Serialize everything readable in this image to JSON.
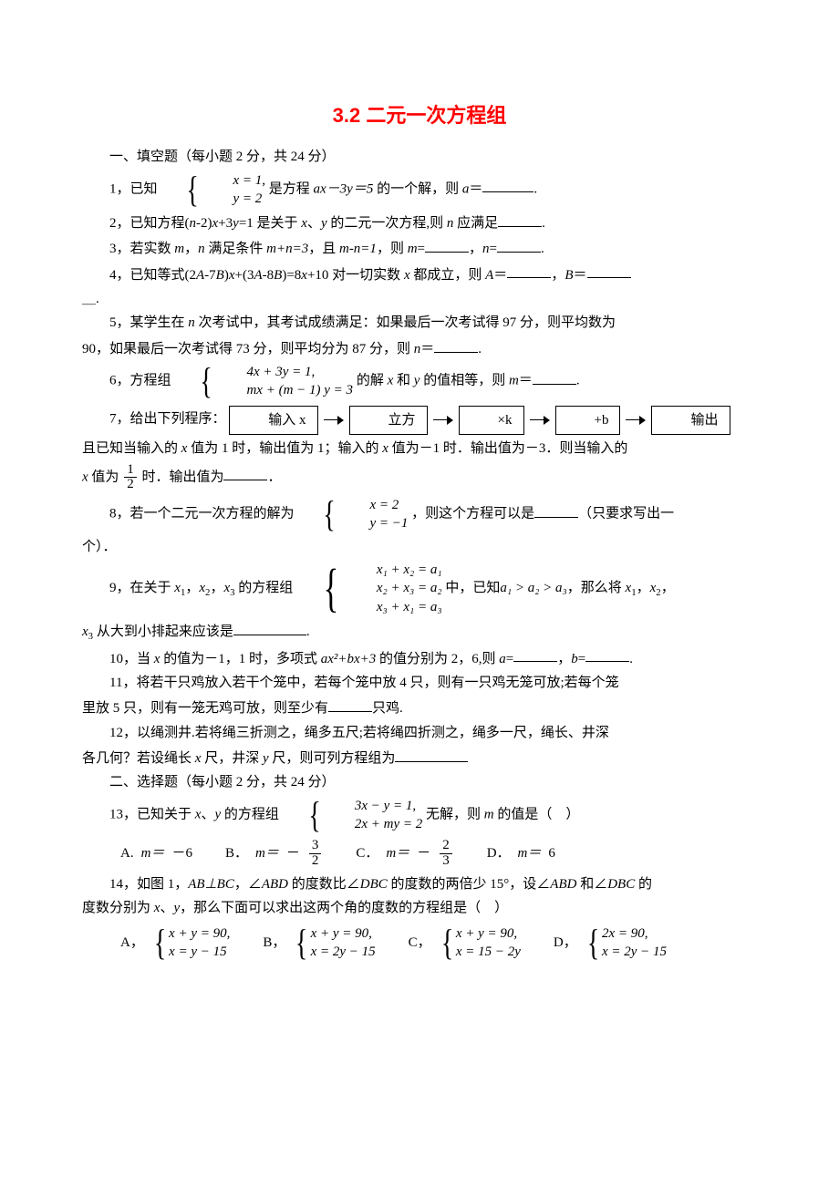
{
  "title": {
    "text": "3.2 二元一次方程组",
    "color": "#ff0000",
    "fontsize": 22
  },
  "section1": "一、填空题（每小题 2 分，共 24 分）",
  "q1": {
    "lead": "1，已知",
    "sys": [
      "x = 1,",
      "y = 2"
    ],
    "tail1": "是方程 ",
    "expr": "ax－3y＝5",
    "tail2": " 的一个解，则 ",
    "var": "a",
    "eq": "＝",
    "period": "."
  },
  "q2": {
    "text_a": "2，已知方程(",
    "n1": "n",
    "text_b": "-2)",
    "x": "x",
    "text_c": "+3",
    "y": "y",
    "text_d": "=1 是关于 ",
    "xv": "x",
    "text_e": "、",
    "yv": "y",
    "text_f": " 的二元一次方程,则 ",
    "nv": "n",
    "text_g": " 应满足",
    "period": "."
  },
  "q3": {
    "t1": "3，若实数 ",
    "m": "m",
    "t2": "，",
    "n": "n",
    "t3": " 满足条件 ",
    "e1": "m+n=3",
    "t4": "，且 ",
    "e2": "m-n=1",
    "t5": "，则 ",
    "mv": "m",
    "eq": "=",
    "t6": "，",
    "nv": "n",
    "eq2": "=",
    "period": "."
  },
  "q4": {
    "t1": "4，已知等式(2",
    "A": "A",
    "t2": "-7",
    "B": "B",
    "t3": ")",
    "x": "x",
    "t4": "+(3",
    "A2": "A",
    "t5": "-8",
    "B2": "B",
    "t6": ")=8",
    "x2": "x",
    "t7": "+10 对一切实数 ",
    "x3": "x",
    "t8": " 都成立，则 ",
    "Av": "A",
    "eq": "＝",
    "t9": "，",
    "Bv": "B",
    "eq2": "＝",
    "tail": "."
  },
  "q4_cont": "＿.",
  "q5": {
    "t1": "5，某学生在 ",
    "n": "n",
    "t2": " 次考试中，其考试成绩满足：如果最后一次考试得 97 分，则平均数为"
  },
  "q5b": {
    "t1": "90，如果最后一次考试得 73 分，则平均分为 87 分，则 ",
    "n": "n",
    "eq": "＝",
    "period": "."
  },
  "q6": {
    "lead": "6，方程组",
    "sys": [
      "4x + 3y = 1,",
      "mx + (m − 1) y = 3"
    ],
    "t1": "的解 ",
    "x": "x",
    "t2": " 和 ",
    "y": "y",
    "t3": " 的值相等，则 ",
    "m": "m",
    "eq": "＝",
    "period": "."
  },
  "q7": {
    "lead": "7，给出下列程序：",
    "boxes": [
      "输入 x",
      "立方",
      "×k",
      "+b",
      "输出"
    ]
  },
  "q7b": {
    "t1": "且已知当输入的 ",
    "x": "x",
    "t2": " 值为 1 时，输出值为 1；输入的 ",
    "x2": "x",
    "t3": " 值为－1 时．输出值为－3．则当输入的"
  },
  "q7c": {
    "x": "x",
    "t1": " 值为",
    "frac": {
      "num": "1",
      "den": "2"
    },
    "t2": "时．输出值为",
    "period": "．"
  },
  "q8": {
    "lead": "8，若一个二元一次方程的解为",
    "sys": [
      "x = 2",
      "y = −1"
    ],
    "t1": "，则这个方程可以是",
    "t2": "（只要求写出一"
  },
  "q8b": "个）．",
  "q9": {
    "lead": "9，在关于 ",
    "x1": "x",
    "s1": "1",
    "t1": "，",
    "x2": "x",
    "s2": "2",
    "t2": "，",
    "x3": "x",
    "s3": "3",
    "t3": " 的方程组",
    "sys": [
      "x₁ + x₂ = a₁",
      "x₂ + x₃ = a₂",
      "x₃ + x₁ = a₃"
    ],
    "t4": "中，已知",
    "cond": "a₁ > a₂ > a₃",
    "t5": "，那么将 ",
    "xa": "x",
    "sa": "1",
    "t6": "，",
    "xb": "x",
    "sb": "2",
    "t7": "，"
  },
  "q9b": {
    "x": "x",
    "s": "3",
    "t1": " 从大到小排起来应该是",
    "period": "."
  },
  "q10": {
    "t1": "10，当 ",
    "x": "x",
    "t2": " 的值为－1，1 时，多项式 ",
    "e": "ax²+bx+3",
    "t3": " 的值分别为 2，6,则 ",
    "a": "a",
    "eq": "=",
    "t4": "，",
    "b": "b",
    "eq2": "=",
    "period": "."
  },
  "q11": {
    "t1": "11，将若干只鸡放入若干个笼中，若每个笼中放 4 只，则有一只鸡无笼可放;若每个笼"
  },
  "q11b": {
    "t1": "里放 5 只，则有一笼无鸡可放，则至少有",
    "t2": "只鸡."
  },
  "q12": {
    "t1": "12，以绳测井.若将绳三折测之，绳多五尺;若将绳四折测之，绳多一尺，绳长、井深"
  },
  "q12b": {
    "t1": "各几何？若设绳长 ",
    "x": "x",
    "t2": " 尺，井深 ",
    "y": "y",
    "t3": " 尺，则可列方程组为"
  },
  "section2": "二、选择题（每小题 2 分，共 24 分）",
  "q13": {
    "lead": "13，已知关于 ",
    "x": "x",
    "t1": "、",
    "y": "y",
    "t2": " 的方程组",
    "sys": [
      "3x − y = 1,",
      "2x + my = 2"
    ],
    "t3": "无解，则 ",
    "m": "m",
    "t4": " 的值是（　）"
  },
  "q13opts": {
    "A": {
      "label": "A.",
      "pre": "m＝",
      "val": "－6"
    },
    "B": {
      "label": "B．",
      "pre": "m＝",
      "neg": "－",
      "frac": {
        "num": "3",
        "den": "2"
      }
    },
    "C": {
      "label": "C．",
      "pre": "m＝",
      "neg": "－",
      "frac": {
        "num": "2",
        "den": "3"
      }
    },
    "D": {
      "label": "D．",
      "pre": "m＝",
      "val": "6"
    }
  },
  "q14": {
    "t1": "14，如图 1，",
    "e1": "AB⊥BC",
    "t2": "，∠",
    "e2": "ABD",
    "t3": " 的度数比∠",
    "e3": "DBC",
    "t4": " 的度数的两倍少 15°，设∠",
    "e4": "ABD",
    "t5": " 和∠",
    "e5": "DBC",
    "t6": " 的"
  },
  "q14b": {
    "t1": "度数分别为 ",
    "x": "x",
    "t2": "、",
    "y": "y",
    "t3": "，那么下面可以求出这两个角的度数的方程组是（　）"
  },
  "q14opts": {
    "A": {
      "label": "A，",
      "sys": [
        "x + y = 90,",
        "x = y − 15"
      ]
    },
    "B": {
      "label": "B，",
      "sys": [
        "x + y = 90,",
        "x = 2y − 15"
      ]
    },
    "C": {
      "label": "C，",
      "sys": [
        "x + y = 90,",
        "x = 15 − 2y"
      ]
    },
    "D": {
      "label": "D，",
      "sys": [
        "2x = 90,",
        "x = 2y − 15"
      ]
    }
  },
  "colors": {
    "text": "#000000",
    "title": "#ff0000",
    "bg": "#ffffff"
  }
}
